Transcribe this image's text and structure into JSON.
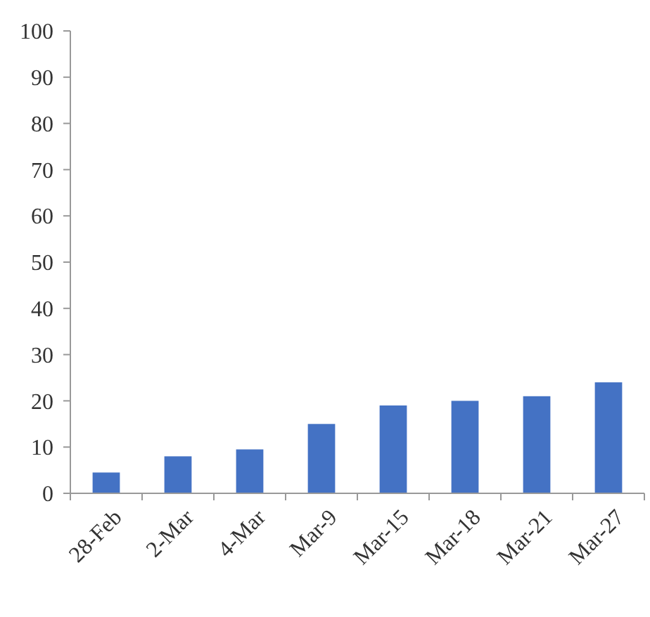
{
  "chart_data": {
    "type": "bar",
    "categories": [
      "28-Feb",
      "2-Mar",
      "4-Mar",
      "Mar-9",
      "Mar-15",
      "Mar-18",
      "Mar-21",
      "Mar-27"
    ],
    "values": [
      4.5,
      8,
      9.5,
      15,
      19,
      20,
      21,
      24
    ],
    "color": "#4472c4",
    "ylim": [
      0,
      100
    ],
    "yticks": [
      0,
      10,
      20,
      30,
      40,
      50,
      60,
      70,
      80,
      90,
      100
    ],
    "grid": false
  }
}
